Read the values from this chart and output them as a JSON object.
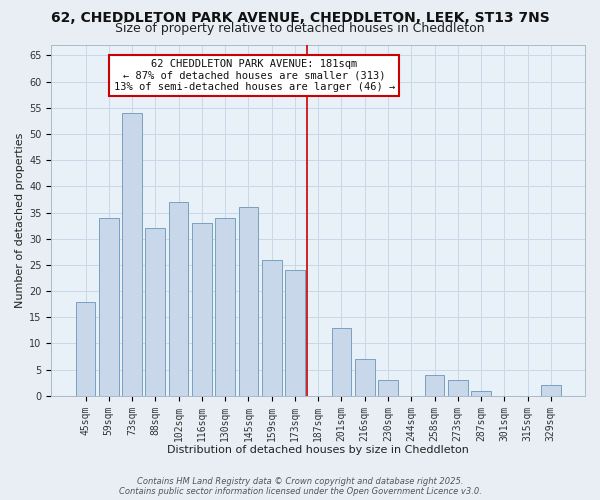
{
  "title": "62, CHEDDLETON PARK AVENUE, CHEDDLETON, LEEK, ST13 7NS",
  "subtitle": "Size of property relative to detached houses in Cheddleton",
  "xlabel": "Distribution of detached houses by size in Cheddleton",
  "ylabel": "Number of detached properties",
  "bar_color": "#c8d8ea",
  "bar_edge_color": "#7aa0c0",
  "categories": [
    "45sqm",
    "59sqm",
    "73sqm",
    "88sqm",
    "102sqm",
    "116sqm",
    "130sqm",
    "145sqm",
    "159sqm",
    "173sqm",
    "187sqm",
    "201sqm",
    "216sqm",
    "230sqm",
    "244sqm",
    "258sqm",
    "273sqm",
    "287sqm",
    "301sqm",
    "315sqm",
    "329sqm"
  ],
  "values": [
    18,
    34,
    54,
    32,
    37,
    33,
    34,
    36,
    26,
    24,
    0,
    13,
    7,
    3,
    0,
    4,
    3,
    1,
    0,
    0,
    2
  ],
  "ylim": [
    0,
    67
  ],
  "yticks": [
    0,
    5,
    10,
    15,
    20,
    25,
    30,
    35,
    40,
    45,
    50,
    55,
    60,
    65
  ],
  "vline_x_idx": 10,
  "annotation_title": "62 CHEDDLETON PARK AVENUE: 181sqm",
  "annotation_line1": "← 87% of detached houses are smaller (313)",
  "annotation_line2": "13% of semi-detached houses are larger (46) →",
  "background_color": "#e8eef4",
  "plot_bg_color": "#e8f0f8",
  "grid_color": "#c8d8e8",
  "title_fontsize": 10,
  "subtitle_fontsize": 9,
  "axis_label_fontsize": 8,
  "tick_fontsize": 7,
  "ann_fontsize": 7.5,
  "footer_text": "Contains HM Land Registry data © Crown copyright and database right 2025.\nContains public sector information licensed under the Open Government Licence v3.0."
}
